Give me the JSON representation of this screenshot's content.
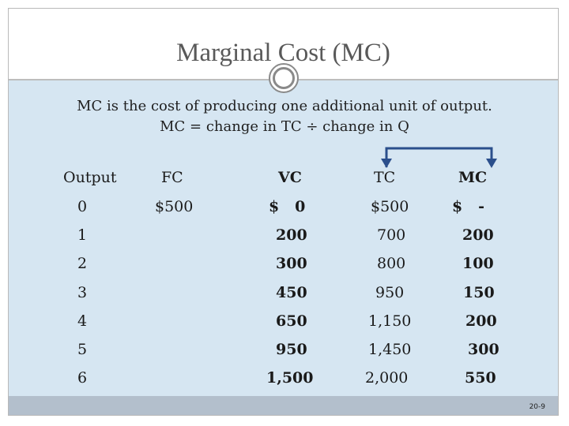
{
  "slide": {
    "title": "Marginal Cost (MC)",
    "line1": "MC is the cost of producing one additional unit of output.",
    "line2": "MC = change in TC ÷ change in Q",
    "page_number": "20-9"
  },
  "table": {
    "headers": {
      "output": "Output",
      "fc": "FC",
      "vc": "VC",
      "tc": "TC",
      "mc": "MC"
    },
    "rows": [
      {
        "output": "0",
        "fc": "$500",
        "vc": "$   0",
        "tc": "$500",
        "mc": "$   -"
      },
      {
        "output": "1",
        "fc": "",
        "vc": "200",
        "tc": "700",
        "mc": "200"
      },
      {
        "output": "2",
        "fc": "",
        "vc": "300",
        "tc": "800",
        "mc": "100"
      },
      {
        "output": "3",
        "fc": "",
        "vc": "450",
        "tc": "950",
        "mc": "150"
      },
      {
        "output": "4",
        "fc": "",
        "vc": "650",
        "tc": "1,150",
        "mc": "200"
      },
      {
        "output": "5",
        "fc": "",
        "vc": "950",
        "tc": "1,450",
        "mc": "300"
      },
      {
        "output": "6",
        "fc": "",
        "vc": "1,500",
        "tc": "2,000",
        "mc": "550"
      }
    ]
  },
  "colors": {
    "content_bg": "#d6e6f2",
    "footer_bar": "#b3bfcc",
    "arrow": "#2b4f8c",
    "title_text": "#595959"
  }
}
